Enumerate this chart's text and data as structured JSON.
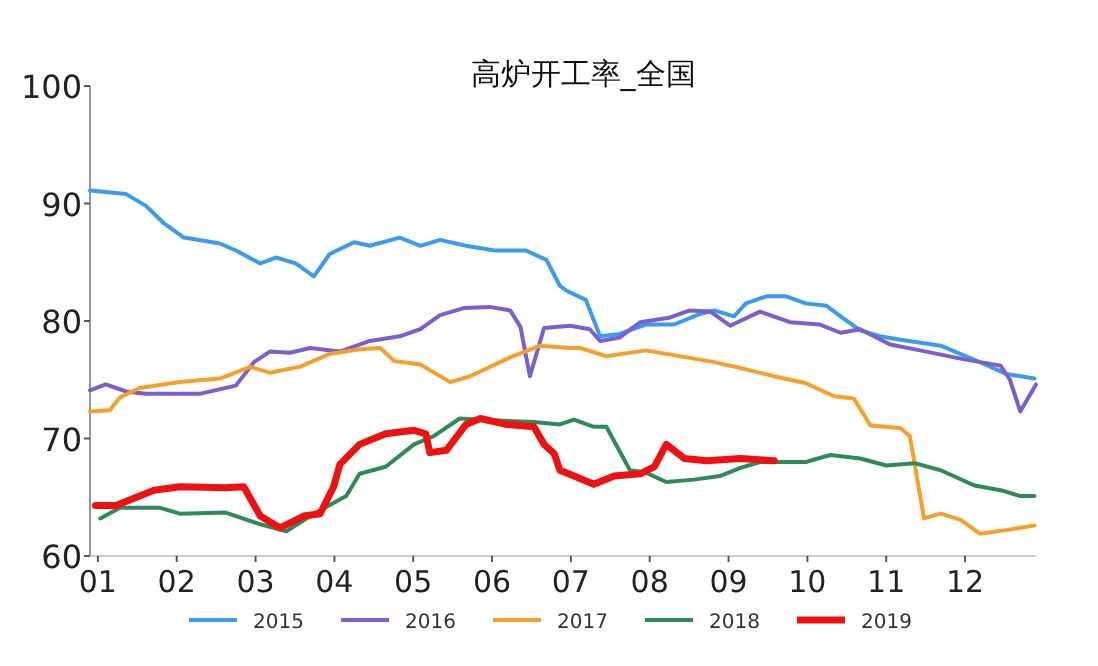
{
  "chart_data": {
    "type": "line",
    "title": "高炉开工率_全国",
    "xlim": [
      0.9,
      12.9
    ],
    "xticks": [
      {
        "value": 1,
        "label": "01"
      },
      {
        "value": 2,
        "label": "02"
      },
      {
        "value": 3,
        "label": "03"
      },
      {
        "value": 4,
        "label": "04"
      },
      {
        "value": 5,
        "label": "05"
      },
      {
        "value": 6,
        "label": "06"
      },
      {
        "value": 7,
        "label": "07"
      },
      {
        "value": 8,
        "label": "08"
      },
      {
        "value": 9,
        "label": "09"
      },
      {
        "value": 10,
        "label": "10"
      },
      {
        "value": 11,
        "label": "11"
      },
      {
        "value": 12,
        "label": "12"
      }
    ],
    "ylim": [
      60,
      100
    ],
    "yticks": [
      60,
      70,
      80,
      90,
      100
    ],
    "grid": false,
    "legend": "bottom",
    "marker": "none",
    "line_style": "solid",
    "series": [
      {
        "name": "2015",
        "color": "#3a9bf0",
        "x": [
          0.9,
          1.36,
          1.61,
          1.84,
          2.09,
          2.55,
          2.75,
          3.06,
          3.26,
          3.51,
          3.74,
          3.94,
          4.25,
          4.45,
          4.83,
          5.09,
          5.34,
          5.67,
          6.03,
          6.43,
          6.69,
          6.86,
          6.94,
          7.19,
          7.37,
          7.62,
          7.95,
          8.31,
          8.64,
          8.82,
          9.07,
          9.22,
          9.48,
          9.73,
          9.98,
          10.24,
          10.42,
          10.67,
          10.92,
          11.18,
          11.69,
          12.12,
          12.52,
          12.88
        ],
        "values": [
          91.1,
          90.8,
          89.8,
          88.3,
          87.1,
          86.6,
          86.0,
          84.9,
          85.4,
          84.9,
          83.8,
          85.7,
          86.7,
          86.4,
          87.1,
          86.4,
          86.9,
          86.4,
          86.0,
          86.0,
          85.2,
          83.0,
          82.6,
          81.8,
          78.7,
          78.9,
          79.7,
          79.7,
          80.6,
          80.9,
          80.4,
          81.5,
          82.1,
          82.1,
          81.5,
          81.3,
          80.4,
          79.2,
          78.7,
          78.4,
          77.9,
          76.7,
          75.5,
          75.1
        ]
      },
      {
        "name": "2016",
        "color": "#7b5fd0",
        "x": [
          0.9,
          1.1,
          1.36,
          1.61,
          2.29,
          2.75,
          2.98,
          3.18,
          3.44,
          3.69,
          4.07,
          4.45,
          4.83,
          5.09,
          5.34,
          5.64,
          5.97,
          6.23,
          6.36,
          6.48,
          6.66,
          6.99,
          7.24,
          7.37,
          7.62,
          7.88,
          8.26,
          8.51,
          8.77,
          9.02,
          9.4,
          9.78,
          10.16,
          10.42,
          10.67,
          11.05,
          11.43,
          11.94,
          12.45,
          12.57,
          12.7,
          12.9
        ],
        "values": [
          74.1,
          74.6,
          74.0,
          73.8,
          73.8,
          74.5,
          76.5,
          77.4,
          77.3,
          77.7,
          77.4,
          78.3,
          78.7,
          79.3,
          80.5,
          81.1,
          81.2,
          80.9,
          79.5,
          75.3,
          79.4,
          79.6,
          79.3,
          78.3,
          78.6,
          79.9,
          80.3,
          80.9,
          80.8,
          79.6,
          80.8,
          79.9,
          79.7,
          79.0,
          79.3,
          78.0,
          77.5,
          76.8,
          76.2,
          75.0,
          72.3,
          74.6
        ]
      },
      {
        "name": "2017",
        "color": "#f5a02a",
        "x": [
          0.9,
          1.15,
          1.28,
          1.53,
          2.04,
          2.55,
          2.93,
          3.18,
          3.56,
          3.94,
          4.32,
          4.58,
          4.76,
          5.09,
          5.47,
          5.72,
          6.23,
          6.61,
          6.99,
          7.12,
          7.45,
          7.95,
          8.82,
          9.15,
          9.58,
          9.98,
          10.34,
          10.59,
          10.8,
          11.18,
          11.3,
          11.48,
          11.69,
          11.94,
          12.19,
          12.52,
          12.88
        ],
        "values": [
          72.3,
          72.4,
          73.5,
          74.3,
          74.8,
          75.1,
          76.1,
          75.6,
          76.1,
          77.2,
          77.6,
          77.7,
          76.6,
          76.3,
          74.8,
          75.3,
          76.9,
          77.9,
          77.7,
          77.7,
          77.0,
          77.5,
          76.5,
          76.0,
          75.3,
          74.7,
          73.6,
          73.4,
          71.1,
          70.9,
          70.2,
          63.2,
          63.6,
          63.1,
          61.9,
          62.2,
          62.6
        ]
      },
      {
        "name": "2018",
        "color": "#2e8b57",
        "x": [
          1.03,
          1.28,
          1.79,
          2.04,
          2.62,
          3.06,
          3.39,
          3.74,
          4.15,
          4.32,
          4.65,
          5.01,
          5.26,
          5.59,
          5.85,
          6.53,
          6.86,
          7.04,
          7.29,
          7.45,
          7.75,
          7.95,
          8.21,
          8.56,
          8.89,
          9.15,
          9.4,
          9.98,
          10.29,
          10.67,
          11.0,
          11.36,
          11.69,
          12.12,
          12.45,
          12.7,
          12.88
        ],
        "values": [
          63.2,
          64.1,
          64.1,
          63.6,
          63.7,
          62.7,
          62.1,
          63.6,
          65.1,
          67.0,
          67.6,
          69.5,
          70.2,
          71.7,
          71.6,
          71.4,
          71.2,
          71.6,
          71.0,
          71.0,
          67.3,
          67.1,
          66.3,
          66.5,
          66.8,
          67.5,
          68.0,
          68.0,
          68.6,
          68.3,
          67.7,
          67.9,
          67.3,
          66.0,
          65.6,
          65.1,
          65.1
        ]
      },
      {
        "name": "2019",
        "color": "#ee1111",
        "x": [
          0.97,
          1.23,
          1.71,
          2.04,
          2.62,
          2.85,
          3.06,
          3.31,
          3.61,
          3.82,
          3.99,
          4.07,
          4.32,
          4.65,
          5.01,
          5.16,
          5.21,
          5.42,
          5.67,
          5.85,
          6.18,
          6.53,
          6.66,
          6.79,
          6.86,
          7.04,
          7.29,
          7.55,
          7.88,
          8.06,
          8.21,
          8.44,
          8.72,
          9.15,
          9.58
        ],
        "values": [
          64.3,
          64.3,
          65.6,
          65.9,
          65.8,
          65.9,
          63.4,
          62.4,
          63.4,
          63.6,
          65.9,
          67.8,
          69.5,
          70.4,
          70.7,
          70.4,
          68.8,
          69.0,
          71.2,
          71.7,
          71.2,
          71.0,
          69.5,
          68.7,
          67.3,
          66.8,
          66.1,
          66.8,
          67.0,
          67.6,
          69.5,
          68.3,
          68.1,
          68.3,
          68.1
        ]
      }
    ]
  }
}
